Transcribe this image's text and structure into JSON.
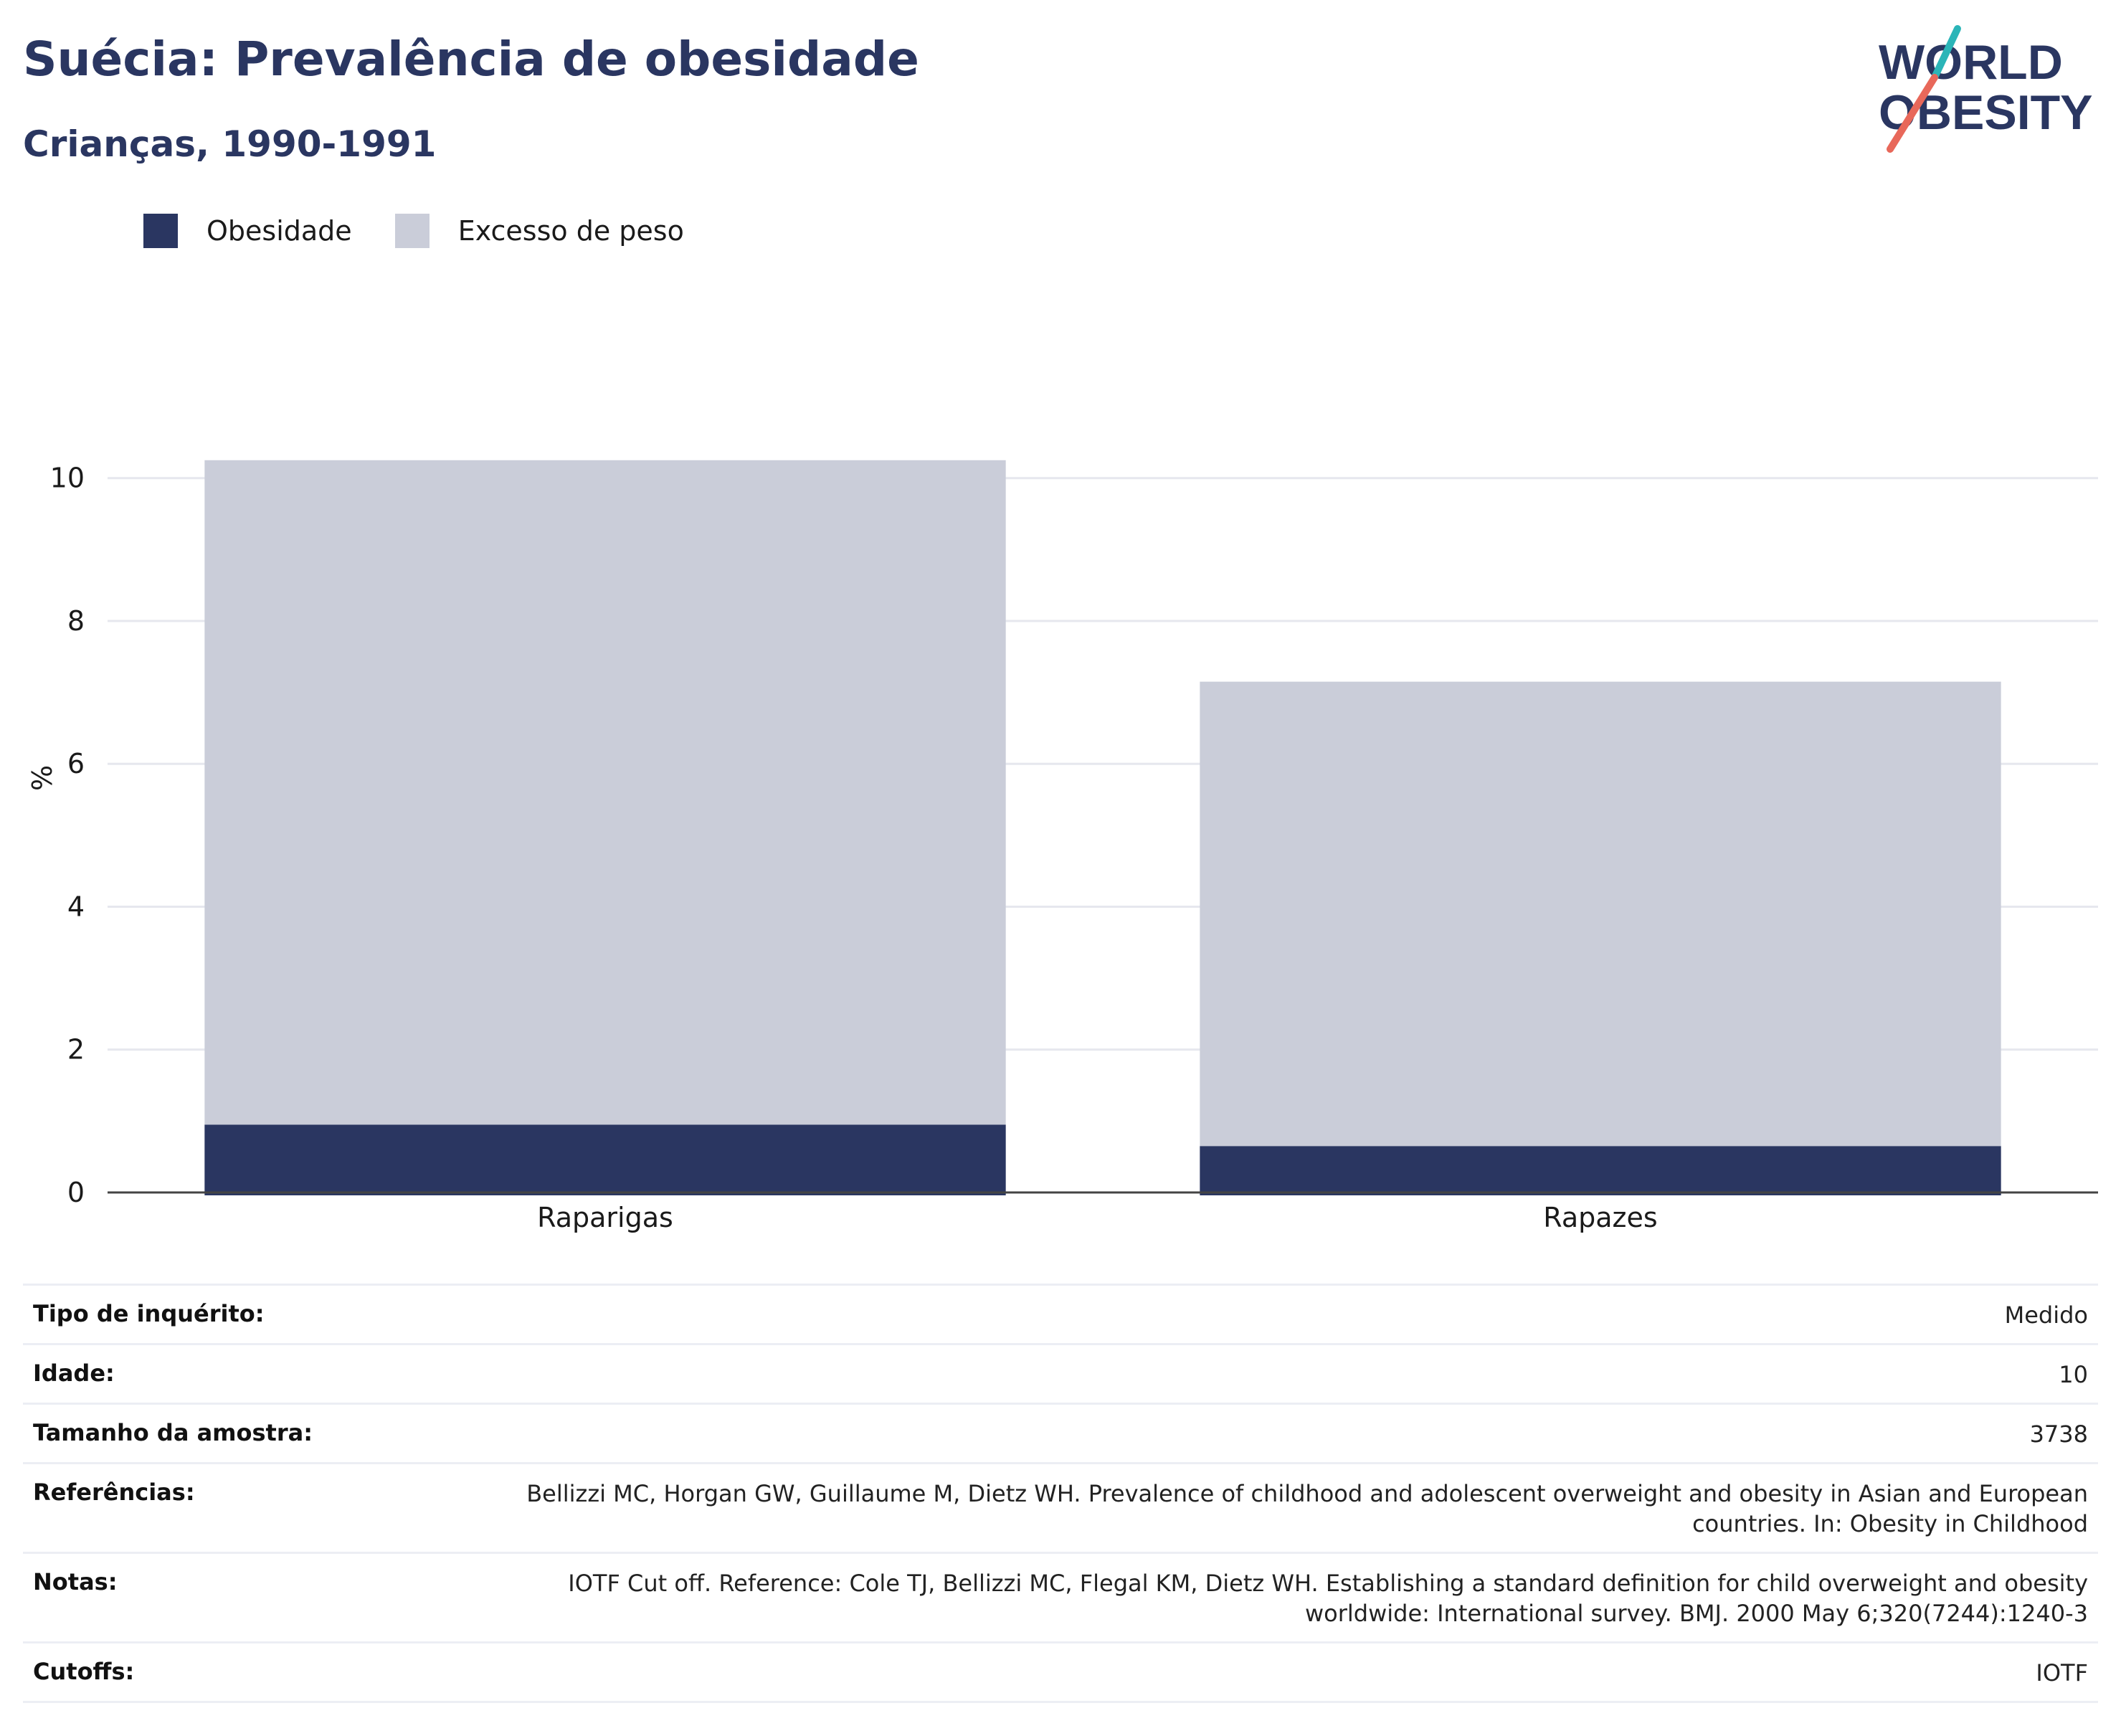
{
  "header": {
    "title": "Suécia: Prevalência de obesidade",
    "subtitle": "Crianças, 1990-1991"
  },
  "logo": {
    "line1": "WORLD",
    "line2": "OBESITY",
    "accent_teal": "#2bb5b8",
    "accent_coral": "#e8685a"
  },
  "legend": [
    {
      "label": "Obesidade",
      "color": "#2a3661"
    },
    {
      "label": "Excesso de peso",
      "color": "#cacdd9"
    }
  ],
  "chart_data": {
    "type": "bar",
    "stacked": true,
    "categories": [
      "Raparigas",
      "Rapazes"
    ],
    "series": [
      {
        "name": "Obesidade",
        "color": "#2a3661",
        "values": [
          0.95,
          0.65
        ]
      },
      {
        "name": "Excesso de peso",
        "color": "#cacdd9",
        "values": [
          9.3,
          6.5
        ]
      }
    ],
    "ylabel": "%",
    "xlabel": "",
    "ylim": [
      0,
      10.8
    ],
    "yticks": [
      "0",
      "2",
      "4",
      "6",
      "8",
      "10"
    ],
    "grid": true,
    "legend_position": "top-left"
  },
  "info": [
    {
      "key": "Tipo de inquérito:",
      "value": "Medido"
    },
    {
      "key": "Idade:",
      "value": "10"
    },
    {
      "key": "Tamanho da amostra:",
      "value": "3738"
    },
    {
      "key": "Referências:",
      "value": "Bellizzi MC, Horgan GW, Guillaume M, Dietz WH. Prevalence of childhood and adolescent overweight and obesity in Asian and European countries. In: Obesity in Childhood"
    },
    {
      "key": "Notas:",
      "value": "IOTF Cut off. Reference: Cole TJ, Bellizzi MC, Flegal KM, Dietz WH. Establishing a standard definition for child overweight and obesity worldwide: International survey. BMJ. 2000 May 6;320(7244):1240-3"
    },
    {
      "key": "Cutoffs:",
      "value": "IOTF"
    }
  ]
}
